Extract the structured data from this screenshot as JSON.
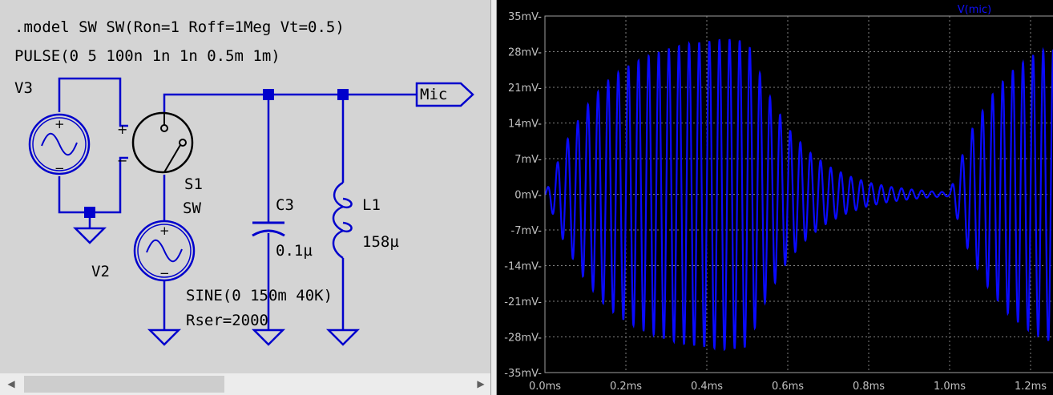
{
  "schematic": {
    "directive_model": ".model SW SW(Ron=1 Roff=1Meg Vt=0.5)",
    "directive_pulse": "PULSE(0 5 100n 1n 1n 0.5m 1m)",
    "v3_label": "V3",
    "v2_label": "V2",
    "s1_label": "S1",
    "s1_model": "SW",
    "c3_label": "C3",
    "c3_value": "0.1µ",
    "l1_label": "L1",
    "l1_value": "158µ",
    "v2_source": "SINE(0 150m 40K)",
    "v2_rser": "Rser=2000",
    "net_label": "Mic",
    "plus": "+",
    "minus": "−",
    "wire_color": "#0000cc"
  },
  "plot": {
    "trace_label": "V(mic)",
    "trace_color": "#0a0aff",
    "grid_color": "#808080",
    "background": "#000000"
  },
  "chart_data": {
    "type": "line",
    "title": "",
    "series": [
      {
        "name": "V(mic)",
        "description_of_shape": "AC oscillation ~40kHz; envelope grows 0→0.5ms to ~29mV, decays 0.5→1.0ms, restarts at 1.0ms",
        "x": [
          0,
          0.05,
          0.1,
          0.15,
          0.2,
          0.25,
          0.3,
          0.35,
          0.4,
          0.45,
          0.5,
          0.55,
          0.6,
          0.65,
          0.7,
          0.75,
          0.8,
          0.85,
          0.9,
          0.95,
          1.0,
          1.05,
          1.1,
          1.15,
          1.2,
          1.25
        ],
        "envelope_mV": [
          0,
          10,
          17,
          22,
          25,
          27,
          28.5,
          29.5,
          30,
          30.5,
          30,
          20,
          13,
          8.5,
          5.5,
          3.6,
          2.3,
          1.5,
          1.0,
          0.6,
          0.4,
          12,
          19,
          24,
          27,
          29
        ]
      }
    ],
    "frequency_kHz": 40,
    "xlabel": "",
    "ylabel": "",
    "xlim": [
      0,
      1.26
    ],
    "ylim": [
      -35,
      35
    ],
    "x_ticks": [
      "0.0ms",
      "0.2ms",
      "0.4ms",
      "0.6ms",
      "0.8ms",
      "1.0ms",
      "1.2ms"
    ],
    "x_tick_values": [
      0,
      0.2,
      0.4,
      0.6,
      0.8,
      1.0,
      1.2
    ],
    "y_ticks": [
      "35mV",
      "28mV",
      "21mV",
      "14mV",
      "7mV",
      "0mV",
      "-7mV",
      "-14mV",
      "-21mV",
      "-28mV",
      "-35mV"
    ],
    "y_tick_values": [
      35,
      28,
      21,
      14,
      7,
      0,
      -7,
      -14,
      -21,
      -28,
      -35
    ],
    "grid": true,
    "legend": "top"
  }
}
